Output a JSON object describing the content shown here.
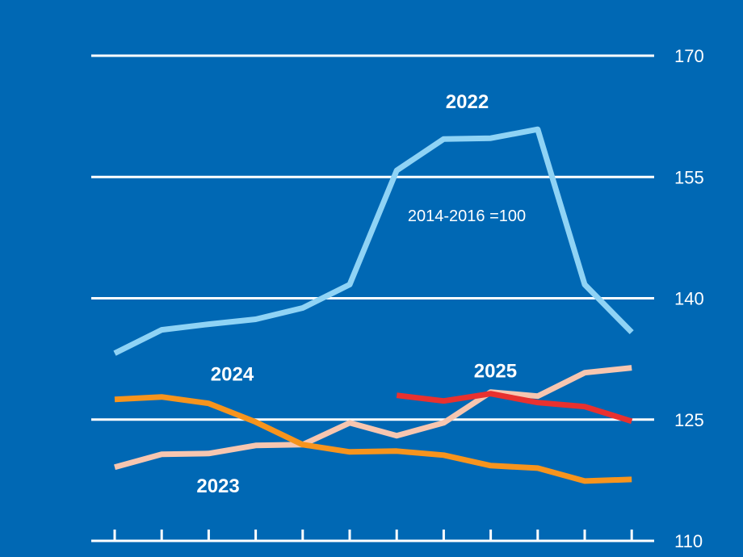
{
  "chart_data": {
    "type": "line",
    "note": "2014-2016 =100",
    "ylim": [
      110,
      170
    ],
    "yticks": [
      110,
      125,
      140,
      155,
      170
    ],
    "grid": true,
    "x": [
      1,
      2,
      3,
      4,
      5,
      6,
      7,
      8,
      9,
      10,
      11,
      12
    ],
    "series": [
      {
        "name": "2022",
        "color": "#8fd3f5",
        "values": [
          133.2,
          136.1,
          136.8,
          137.4,
          138.8,
          141.7,
          155.8,
          159.7,
          159.8,
          160.9,
          141.7,
          135.8
        ]
      },
      {
        "name": "2023",
        "color": "#f7c6b0",
        "values": [
          119.1,
          120.7,
          120.8,
          121.8,
          121.9,
          124.6,
          123.0,
          124.6,
          128.4,
          127.9,
          130.8,
          131.4
        ]
      },
      {
        "name": "2024",
        "color": "#f7941d",
        "values": [
          127.5,
          127.8,
          127.0,
          124.7,
          121.9,
          121.0,
          121.1,
          120.6,
          119.3,
          119.0,
          117.4,
          117.6
        ]
      },
      {
        "name": "2025",
        "color": "#e8312f",
        "values": [
          null,
          null,
          null,
          null,
          null,
          null,
          128.0,
          127.3,
          128.2,
          127.1,
          126.6,
          124.8
        ]
      }
    ]
  }
}
